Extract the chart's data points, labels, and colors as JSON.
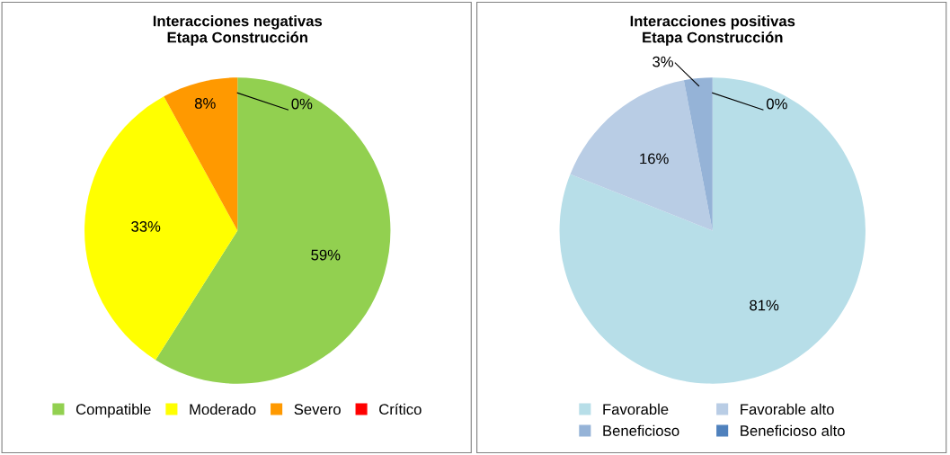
{
  "chart_data": [
    {
      "type": "pie",
      "title": "Interacciones negativas\nEtapa Construcción",
      "categories": [
        "Compatible",
        "Moderado",
        "Severo",
        "Crítico"
      ],
      "values": [
        59,
        33,
        8,
        0
      ],
      "value_labels": [
        "59%",
        "33%",
        "8%",
        "0%"
      ],
      "colors": [
        "#92d050",
        "#ffff00",
        "#ff9900",
        "#ff0000"
      ],
      "legend": "bottom"
    },
    {
      "type": "pie",
      "title": "Interacciones positivas\nEtapa Construcción",
      "categories": [
        "Favorable",
        "Favorable alto",
        "Beneficioso",
        "Beneficioso alto"
      ],
      "values": [
        81,
        16,
        3,
        0
      ],
      "value_labels": [
        "81%",
        "16%",
        "3%",
        "0%"
      ],
      "colors": [
        "#b7dee8",
        "#b9cde5",
        "#95b3d7",
        "#4f81bd"
      ],
      "legend": "bottom"
    }
  ]
}
